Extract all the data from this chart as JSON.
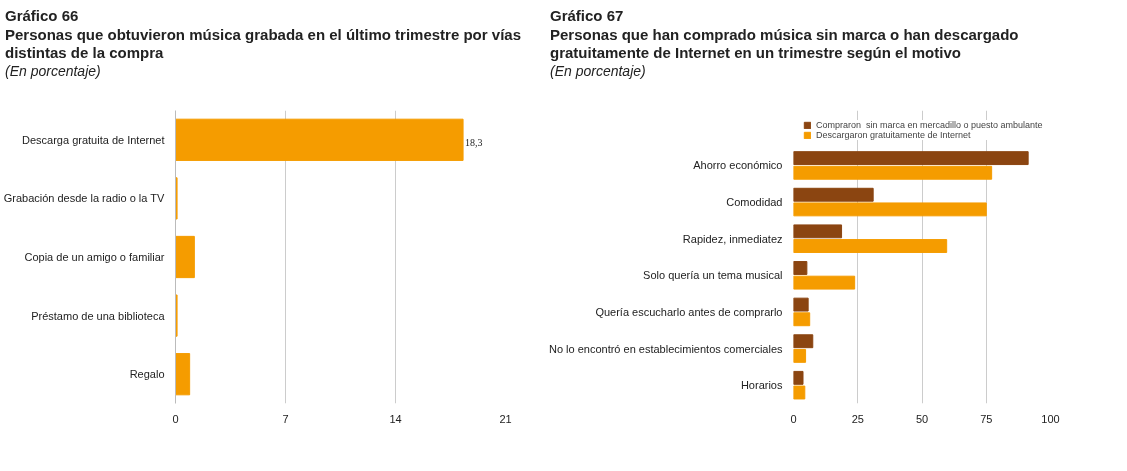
{
  "chart_data": [
    {
      "type": "bar",
      "orientation": "horizontal",
      "title": "Gráfico 66",
      "subtitle": "Personas que obtuvieron música grabada en el último trimestre por vías distintas de la compra",
      "annotations": [
        "(En porcentaje)"
      ],
      "categories": [
        "Descarga gratuita de Internet",
        "Grabación desde la radio o la TV",
        "Copia de un amigo o familiar",
        "Préstamo de una biblioteca",
        "Regalo"
      ],
      "series": [
        {
          "color": "#f59c00",
          "values": [
            18.3,
            0.1,
            1.2,
            0.1,
            0.9
          ],
          "value_labels": [
            "18,3",
            null,
            null,
            null,
            null
          ]
        }
      ],
      "xlim": [
        0,
        21
      ],
      "xticks": [
        0,
        7,
        14,
        21
      ],
      "grid": "x",
      "legend": false
    },
    {
      "type": "bar",
      "orientation": "horizontal",
      "title": "Gráfico 67",
      "subtitle": "Personas que han comprado música sin marca o han descargado gratuitamente de Internet en un trimestre según el motivo",
      "annotations": [
        "(En porcentaje)"
      ],
      "categories": [
        "Ahorro económico",
        "Comodidad",
        "Rapidez, inmediatez",
        "Solo quería un tema musical",
        "Quería escucharlo antes de comprarlo",
        "No lo encontró en establecimientos comerciales",
        "Horarios"
      ],
      "series": [
        {
          "name": "Compraron  sin marca en mercadillo o puesto ambulante",
          "color": "#8b4511",
          "values": [
            91.3,
            31,
            18.7,
            5.2,
            5.7,
            7.5,
            3.7
          ]
        },
        {
          "name": "Descargaron gratuitamente de Internet",
          "color": "#f59c00",
          "values": [
            77.1,
            75,
            59.6,
            23.8,
            6.3,
            4.7,
            4.4
          ]
        }
      ],
      "xlim": [
        0,
        100
      ],
      "xticks": [
        0,
        25,
        50,
        75,
        100
      ],
      "grid": "x",
      "legend": "top"
    }
  ]
}
